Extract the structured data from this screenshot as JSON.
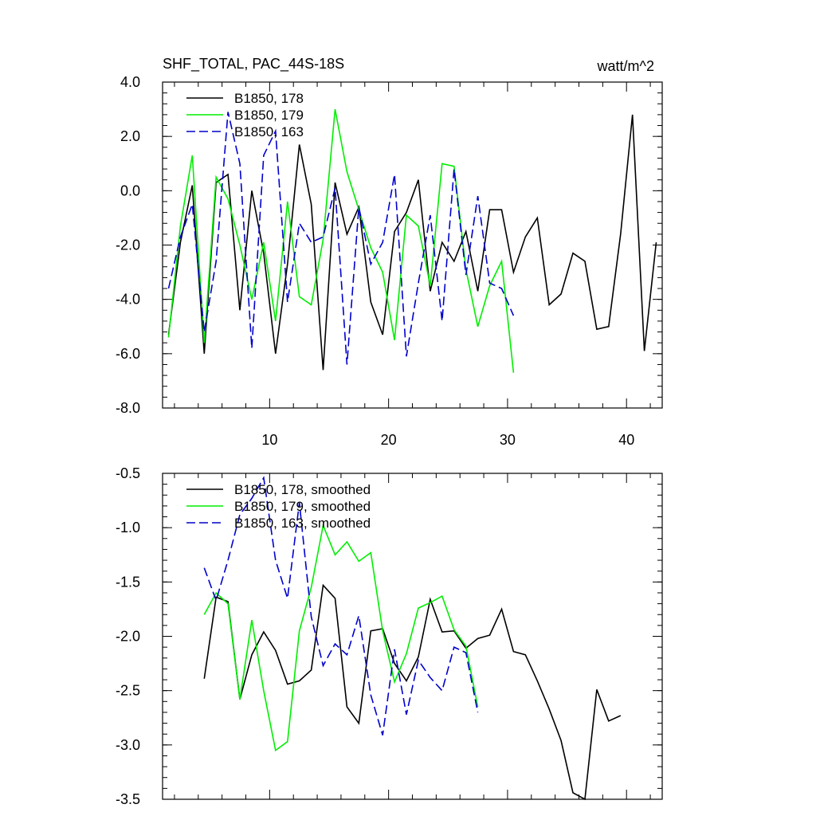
{
  "chart_data": [
    {
      "type": "line",
      "title": "SHF_TOTAL, PAC_44S-18S",
      "units": "watt/m^2",
      "xlim": [
        1,
        43
      ],
      "ylim": [
        -8,
        4
      ],
      "yticks": [
        4,
        2,
        0,
        -2,
        -4,
        -6,
        -8
      ],
      "ytick_labels": [
        "4.0",
        "2.0",
        "0.0",
        "-2.0",
        "-4.0",
        "-6.0",
        "-8.0"
      ],
      "xticks": [
        10,
        20,
        30,
        40
      ],
      "xtick_labels": [
        "10",
        "20",
        "30",
        "40"
      ],
      "legend_position": "top-left",
      "series": [
        {
          "name": "B1850, 178",
          "color": "#000000",
          "dash": "solid",
          "x": [
            1.5,
            2.5,
            3.5,
            4.5,
            5.5,
            6.5,
            7.5,
            8.5,
            9.5,
            10.5,
            11.5,
            12.5,
            13.5,
            14.5,
            15.5,
            16.5,
            17.5,
            18.5,
            19.5,
            20.5,
            21.5,
            22.5,
            23.5,
            24.5,
            25.5,
            26.5,
            27.5,
            28.5,
            29.5,
            30.5,
            31.5,
            32.5,
            33.5,
            34.5,
            35.5,
            36.5,
            37.5,
            38.5,
            39.5,
            40.5,
            41.5,
            42.5
          ],
          "values": [
            -5.3,
            -1.9,
            0.2,
            -6.0,
            0.3,
            0.6,
            -4.4,
            0.0,
            -2.3,
            -6.0,
            -2.7,
            1.7,
            -0.5,
            -6.6,
            0.3,
            -1.6,
            -0.6,
            -4.1,
            -5.3,
            -1.5,
            -0.8,
            0.4,
            -3.7,
            -1.9,
            -2.6,
            -1.5,
            -3.7,
            -0.7,
            -0.7,
            -3.0,
            -1.7,
            -1.0,
            -4.2,
            -3.8,
            -2.3,
            -2.6,
            -5.1,
            -5.0,
            -1.6,
            2.8,
            -5.9,
            -1.9
          ]
        },
        {
          "name": "B1850, 179",
          "color": "#00ee00",
          "dash": "solid",
          "x": [
            1.5,
            2.5,
            3.5,
            4.5,
            5.5,
            6.5,
            7.5,
            8.5,
            9.5,
            10.5,
            11.5,
            12.5,
            13.5,
            14.5,
            15.5,
            16.5,
            17.5,
            18.5,
            19.5,
            20.5,
            21.5,
            22.5,
            23.5,
            24.5,
            25.5,
            26.5,
            27.5,
            28.5,
            29.5,
            30.5
          ],
          "values": [
            -5.4,
            -1.3,
            1.3,
            -5.6,
            0.5,
            -0.3,
            -2.0,
            -4.0,
            -1.9,
            -4.8,
            -0.4,
            -3.9,
            -4.2,
            -1.8,
            3.0,
            0.7,
            -0.7,
            -2.1,
            -3.0,
            -5.5,
            -0.9,
            -1.3,
            -3.5,
            1.0,
            0.9,
            -2.9,
            -5.0,
            -3.5,
            -2.6,
            -6.7
          ]
        },
        {
          "name": "B1850, 163",
          "color": "#0000cc",
          "dash": "dashed",
          "x": [
            1.5,
            2.5,
            3.5,
            4.5,
            5.5,
            6.5,
            7.5,
            8.5,
            9.5,
            10.5,
            11.5,
            12.5,
            13.5,
            14.5,
            15.5,
            16.5,
            17.5,
            18.5,
            19.5,
            20.5,
            21.5,
            22.5,
            23.5,
            24.5,
            25.5,
            26.5,
            27.5,
            28.5,
            29.5,
            30.5
          ],
          "values": [
            -3.6,
            -1.7,
            -0.5,
            -5.2,
            -2.6,
            2.9,
            1.0,
            -5.8,
            1.3,
            2.2,
            -4.1,
            -1.2,
            -1.9,
            -1.7,
            0.1,
            -6.4,
            -0.6,
            -2.7,
            -1.9,
            0.6,
            -6.1,
            -3.4,
            -0.9,
            -4.8,
            0.8,
            -3.1,
            -0.2,
            -3.4,
            -3.6,
            -4.6
          ]
        }
      ]
    },
    {
      "type": "line",
      "title": "",
      "xlim": [
        1,
        43
      ],
      "ylim": [
        -3.5,
        -0.5
      ],
      "yticks": [
        -0.5,
        -1.0,
        -1.5,
        -2.0,
        -2.5,
        -3.0,
        -3.5
      ],
      "ytick_labels": [
        "-0.5",
        "-1.0",
        "-1.5",
        "-2.0",
        "-2.5",
        "-3.0",
        "-3.5"
      ],
      "xticks": [
        10,
        20,
        30,
        40
      ],
      "legend_position": "top-left",
      "series": [
        {
          "name": "B1850, 178, smoothed",
          "color": "#000000",
          "dash": "solid",
          "x": [
            4.5,
            5.5,
            6.5,
            7.5,
            8.5,
            9.5,
            10.5,
            11.5,
            12.5,
            13.5,
            14.5,
            15.5,
            16.5,
            17.5,
            18.5,
            19.5,
            20.5,
            21.5,
            22.5,
            23.5,
            24.5,
            25.5,
            26.5,
            27.5,
            28.5,
            29.5,
            30.5,
            31.5,
            32.5,
            33.5,
            34.5,
            35.5,
            36.5,
            37.5,
            38.5,
            39.5
          ],
          "values": [
            -2.39,
            -1.64,
            -1.68,
            -2.58,
            -2.17,
            -1.96,
            -2.13,
            -2.44,
            -2.41,
            -2.31,
            -1.53,
            -1.65,
            -2.65,
            -2.8,
            -1.95,
            -1.93,
            -2.25,
            -2.41,
            -2.19,
            -1.66,
            -1.96,
            -1.95,
            -2.11,
            -2.02,
            -1.99,
            -1.75,
            -2.14,
            -2.17,
            -2.41,
            -2.67,
            -2.96,
            -3.44,
            -3.5,
            -2.49,
            -2.78,
            -2.73
          ]
        },
        {
          "name": "B1850, 179, smoothed",
          "color": "#00ee00",
          "dash": "solid",
          "x": [
            4.5,
            5.5,
            6.5,
            7.5,
            8.5,
            9.5,
            10.5,
            11.5,
            12.5,
            13.5,
            14.5,
            15.5,
            16.5,
            17.5,
            18.5,
            19.5,
            20.5,
            21.5,
            22.5,
            23.5,
            24.5,
            25.5,
            26.5,
            27.5
          ],
          "values": [
            -1.8,
            -1.6,
            -1.7,
            -2.58,
            -1.85,
            -2.5,
            -3.05,
            -2.97,
            -1.95,
            -1.55,
            -0.98,
            -1.25,
            -1.13,
            -1.31,
            -1.23,
            -1.95,
            -2.42,
            -2.16,
            -1.74,
            -1.69,
            -1.63,
            -1.94,
            -2.09,
            -2.65
          ]
        },
        {
          "name": "B1850, 163, smoothed",
          "color": "#0000cc",
          "dash": "dashed",
          "x": [
            4.5,
            5.5,
            6.5,
            7.5,
            8.5,
            9.5,
            10.5,
            11.5,
            12.5,
            13.5,
            14.5,
            15.5,
            16.5,
            17.5,
            18.5,
            19.5,
            20.5,
            21.5,
            22.5,
            23.5,
            24.5,
            25.5,
            26.5,
            27.5
          ],
          "values": [
            -1.37,
            -1.67,
            -1.3,
            -0.88,
            -0.73,
            -0.54,
            -1.3,
            -1.65,
            -0.77,
            -1.82,
            -2.27,
            -2.07,
            -2.17,
            -1.81,
            -2.54,
            -2.91,
            -2.12,
            -2.72,
            -2.22,
            -2.38,
            -2.5,
            -2.1,
            -2.15,
            -2.7
          ]
        }
      ]
    }
  ]
}
